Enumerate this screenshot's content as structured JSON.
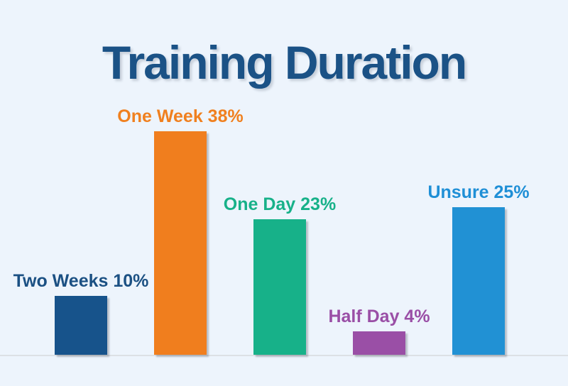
{
  "title": "Training Duration",
  "colors": {
    "background": "#EDF4FC",
    "title_text": "#1B5286",
    "axis_line": "#DCE0E5"
  },
  "chart_data": {
    "type": "bar",
    "title": "Training Duration",
    "categories": [
      "Two Weeks",
      "One Week",
      "One Day",
      "Half Day",
      "Unsure"
    ],
    "values": [
      10,
      38,
      23,
      4,
      25
    ],
    "unit": "%",
    "bar_labels": [
      "Two Weeks 10%",
      "One Week 38%",
      "One Day 23%",
      "Half Day 4%",
      "Unsure 25%"
    ],
    "bar_colors": [
      "#17538B",
      "#F07E1E",
      "#17B189",
      "#9A4FA6",
      "#2191D4"
    ],
    "label_colors": [
      "#1B5083",
      "#F0801F",
      "#17B189",
      "#9A4FA6",
      "#1F8FD6"
    ],
    "xlabel": "",
    "ylabel": "",
    "ylim": [
      0,
      40
    ],
    "grid": false,
    "legend_position": "none",
    "value_label_position": "above-bar"
  }
}
